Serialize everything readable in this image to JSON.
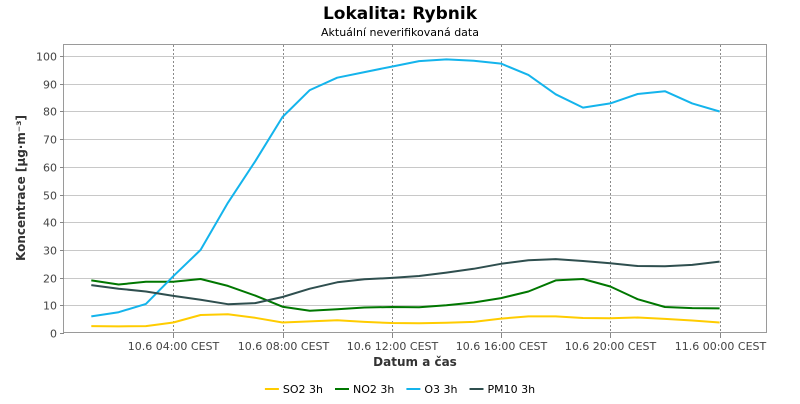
{
  "chart_data": {
    "type": "line",
    "title": "Lokalita: Rybnik",
    "subtitle": "Aktuální neverifikovaná data",
    "xlabel": "Datum a čas",
    "ylabel": "Koncentrace [µg·m⁻³]",
    "ylim": [
      0,
      104
    ],
    "yticks": [
      0,
      10,
      20,
      30,
      40,
      50,
      60,
      70,
      80,
      90,
      100
    ],
    "x_hours": [
      1,
      2,
      3,
      4,
      5,
      6,
      7,
      8,
      9,
      10,
      11,
      12,
      13,
      14,
      15,
      16,
      17,
      18,
      19,
      20,
      21,
      22,
      23,
      24
    ],
    "xticks": [
      {
        "hour": 4,
        "label": "10.6 04:00 CEST"
      },
      {
        "hour": 8,
        "label": "10.6 08:00 CEST"
      },
      {
        "hour": 12,
        "label": "10.6 12:00 CEST"
      },
      {
        "hour": 16,
        "label": "10.6 16:00 CEST"
      },
      {
        "hour": 20,
        "label": "10.6 20:00 CEST"
      },
      {
        "hour": 24,
        "label": "11.6 00:00 CEST"
      }
    ],
    "grid": true,
    "legend_position": "bottom",
    "series": [
      {
        "name": "SO2 3h",
        "color": "#ffcc00",
        "values": [
          2.5,
          2.4,
          2.5,
          3.8,
          6.5,
          6.8,
          5.5,
          3.8,
          4.2,
          4.6,
          4.0,
          3.6,
          3.5,
          3.7,
          4.0,
          5.2,
          6.0,
          6.0,
          5.4,
          5.3,
          5.6,
          5.1,
          4.5,
          3.8
        ]
      },
      {
        "name": "NO2 3h",
        "color": "#007700",
        "values": [
          19.0,
          17.5,
          18.5,
          18.5,
          19.5,
          17.0,
          13.5,
          9.5,
          8.0,
          8.6,
          9.2,
          9.4,
          9.3,
          10.0,
          11.0,
          12.6,
          15.0,
          19.0,
          19.5,
          16.8,
          12.2,
          9.4,
          9.0,
          8.9
        ]
      },
      {
        "name": "O3 3h",
        "color": "#14b4ec",
        "values": [
          6.0,
          7.5,
          10.5,
          20.5,
          30.0,
          47.0,
          62.0,
          78.0,
          87.7,
          92.2,
          94.2,
          96.2,
          98.2,
          98.8,
          98.3,
          97.3,
          93.2,
          86.2,
          81.4,
          82.9,
          86.3,
          87.3,
          82.9,
          80.0
        ]
      },
      {
        "name": "PM10 3h",
        "color": "#2f4f4f",
        "values": [
          17.3,
          16.0,
          15.0,
          13.4,
          12.0,
          10.4,
          10.8,
          13.0,
          16.0,
          18.3,
          19.4,
          19.9,
          20.6,
          21.8,
          23.2,
          25.0,
          26.3,
          26.7,
          26.0,
          25.2,
          24.2,
          24.1,
          24.6,
          25.8
        ]
      }
    ]
  }
}
